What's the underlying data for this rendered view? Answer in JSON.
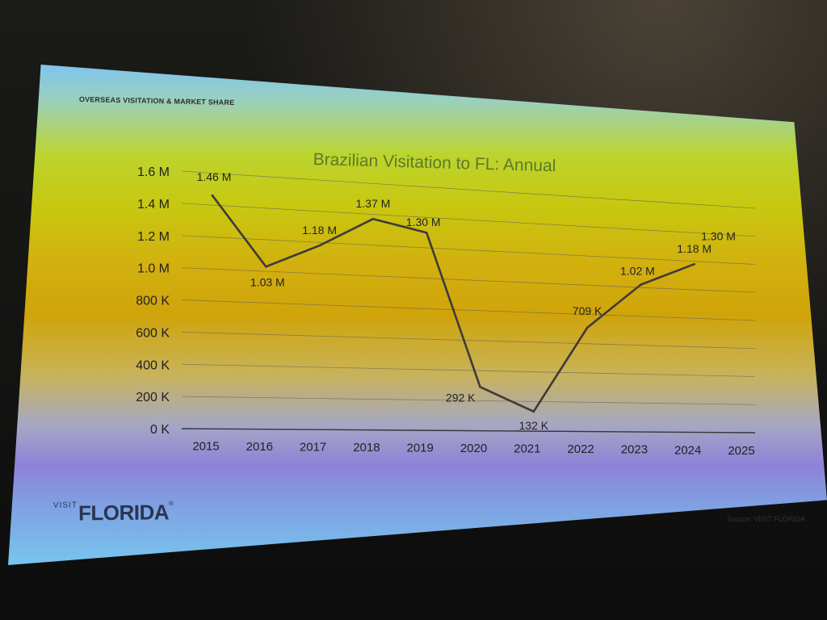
{
  "slide": {
    "section_label": "OVERSEAS VISITATION & MARKET SHARE",
    "brand_prefix": "VISIT",
    "brand_name": "FLORIDA",
    "brand_mark": "®",
    "source": "Source: VISIT FLORIDA"
  },
  "chart_data": {
    "type": "line",
    "title": "Brazilian Visitation to FL: Annual",
    "xlabel": "",
    "ylabel": "",
    "categories": [
      "2015",
      "2016",
      "2017",
      "2018",
      "2019",
      "2020",
      "2021",
      "2022",
      "2023",
      "2024",
      "2025"
    ],
    "series": [
      {
        "name": "Brazilian Visitation",
        "values": [
          1460000,
          1030000,
          1180000,
          1370000,
          1300000,
          292000,
          132000,
          709000,
          1020000,
          1180000,
          1300000
        ],
        "labels": [
          "1.46 M",
          "1.03 M",
          "1.18 M",
          "1.37 M",
          "1.30 M",
          "292 K",
          "132 K",
          "709 K",
          "1.02 M",
          "1.18 M",
          "1.30 M"
        ]
      }
    ],
    "ylim": [
      0,
      1600000
    ],
    "yticks": [
      0,
      200000,
      400000,
      600000,
      800000,
      1000000,
      1200000,
      1400000,
      1600000
    ],
    "ytick_labels": [
      "0 K",
      "200 K",
      "400 K",
      "600 K",
      "800 K",
      "1.0 M",
      "1.2 M",
      "1.4 M",
      "1.6 M"
    ],
    "grid": true,
    "legend": "none",
    "colors": {
      "line": "#3f3a3a",
      "grid": "#5a5a5a",
      "axis": "#2a2a2a",
      "text": "#222222",
      "title": "#5c7a2a"
    }
  }
}
